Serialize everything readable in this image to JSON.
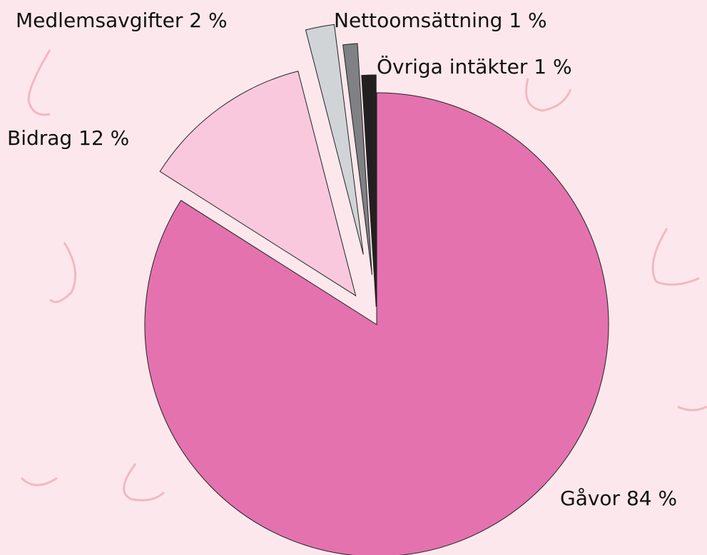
{
  "chart_data": {
    "type": "pie",
    "categories": [
      "Gåvor",
      "Bidrag",
      "Medlemsavgifter",
      "Nettoomsättning",
      "Övriga intäkter"
    ],
    "values": [
      84,
      12,
      2,
      1,
      1
    ],
    "value_labels": [
      "84 %",
      "12 %",
      "2 %",
      "1 %",
      "1 %"
    ],
    "colors": [
      "#e472ae",
      "#fac8dd",
      "#d0d4d6",
      "#7f8184",
      "#231f20"
    ]
  }
}
